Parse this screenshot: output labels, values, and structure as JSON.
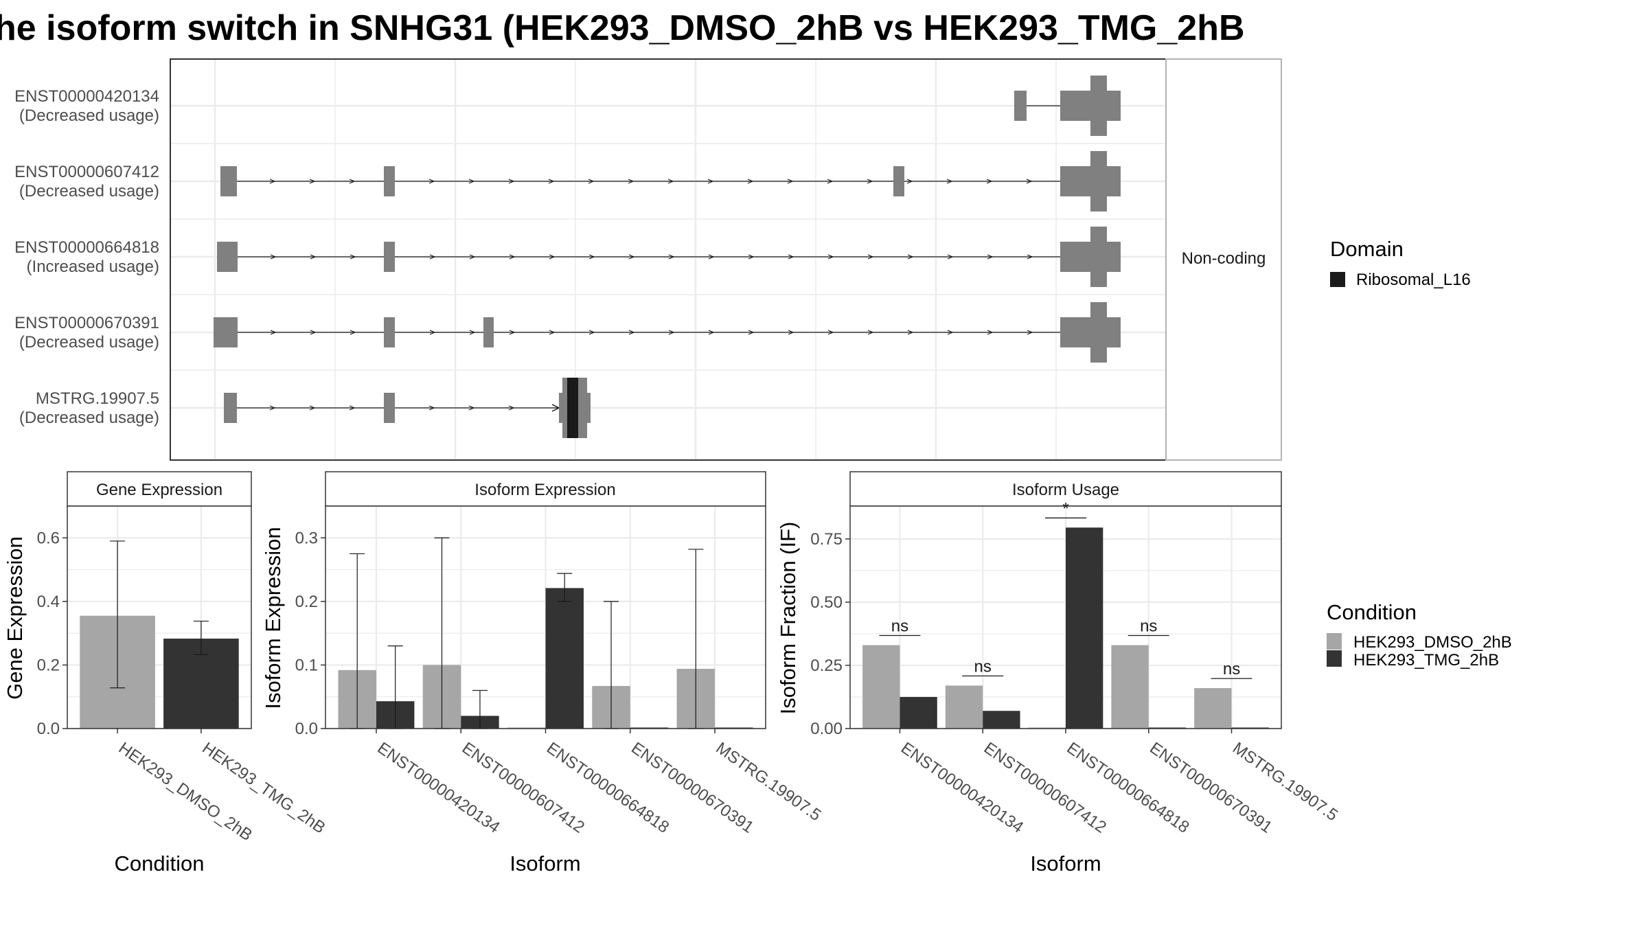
{
  "title": "he isoform switch in SNHG31 (HEK293_DMSO_2hB vs HEK293_TMG_2hB",
  "colors": {
    "dmso": "#a6a6a6",
    "tmg": "#333333",
    "exon": "#808080",
    "domain": "#1a1a1a",
    "grid": "#ebebeb",
    "panel_border": "#333333",
    "strip_fill": "#ffffff"
  },
  "chart_data": [
    {
      "type": "gene-structure",
      "facet_label": "Non-coding",
      "rows": [
        {
          "id": "ENST00000420134",
          "usage": "(Decreased usage)"
        },
        {
          "id": "ENST00000607412",
          "usage": "(Decreased usage)"
        },
        {
          "id": "ENST00000664818",
          "usage": "(Increased usage)"
        },
        {
          "id": "ENST00000670391",
          "usage": "(Decreased usage)"
        },
        {
          "id": "MSTRG.19907.5",
          "usage": "(Decreased usage)"
        }
      ],
      "legend": {
        "title": "Domain",
        "entries": [
          "Ribosomal_L16"
        ]
      }
    },
    {
      "type": "bar",
      "title": "Gene Expression",
      "xlabel": "Condition",
      "ylabel": "Gene Expression",
      "ylim": [
        0,
        0.7
      ],
      "yticks": [
        "0.0",
        "0.2",
        "0.4",
        "0.6"
      ],
      "categories": [
        "HEK293_DMSO_2hB",
        "HEK293_TMG_2hB"
      ],
      "values": [
        0.355,
        0.283
      ],
      "err_low": [
        0.128,
        0.233
      ],
      "err_high": [
        0.59,
        0.338
      ]
    },
    {
      "type": "bar",
      "title": "Isoform Expression",
      "xlabel": "Isoform",
      "ylabel": "Isoform Expression",
      "ylim": [
        0,
        0.35
      ],
      "yticks": [
        "0.0",
        "0.1",
        "0.2",
        "0.3"
      ],
      "categories": [
        "ENST00000420134",
        "ENST00000607412",
        "ENST00000664818",
        "ENST00000670391",
        "MSTRG.19907.5"
      ],
      "series": [
        {
          "name": "HEK293_DMSO_2hB",
          "values": [
            0.092,
            0.1,
            0.0,
            0.067,
            0.094
          ],
          "err_low": [
            0.0,
            0.0,
            null,
            0.0,
            0.0
          ],
          "err_high": [
            0.275,
            0.3,
            null,
            0.2,
            0.282
          ]
        },
        {
          "name": "HEK293_TMG_2hB",
          "values": [
            0.043,
            0.02,
            0.221,
            0.0,
            0.0
          ],
          "err_low": [
            0.0,
            0.0,
            0.2,
            null,
            null
          ],
          "err_high": [
            0.13,
            0.06,
            0.244,
            null,
            null
          ]
        }
      ]
    },
    {
      "type": "bar",
      "title": "Isoform Usage",
      "xlabel": "Isoform",
      "ylabel": "Isoform Fraction (IF)",
      "ylim": [
        0,
        0.88
      ],
      "yticks": [
        "0.00",
        "0.25",
        "0.50",
        "0.75"
      ],
      "categories": [
        "ENST00000420134",
        "ENST00000607412",
        "ENST00000664818",
        "ENST00000670391",
        "MSTRG.19907.5"
      ],
      "series": [
        {
          "name": "HEK293_DMSO_2hB",
          "values": [
            0.33,
            0.17,
            0.0,
            0.33,
            0.16
          ]
        },
        {
          "name": "HEK293_TMG_2hB",
          "values": [
            0.125,
            0.07,
            0.795,
            0.0,
            0.0
          ]
        }
      ],
      "significance": [
        "ns",
        "ns",
        "*",
        "ns",
        "ns"
      ],
      "legend": {
        "title": "Condition",
        "entries": [
          "HEK293_DMSO_2hB",
          "HEK293_TMG_2hB"
        ]
      }
    }
  ]
}
